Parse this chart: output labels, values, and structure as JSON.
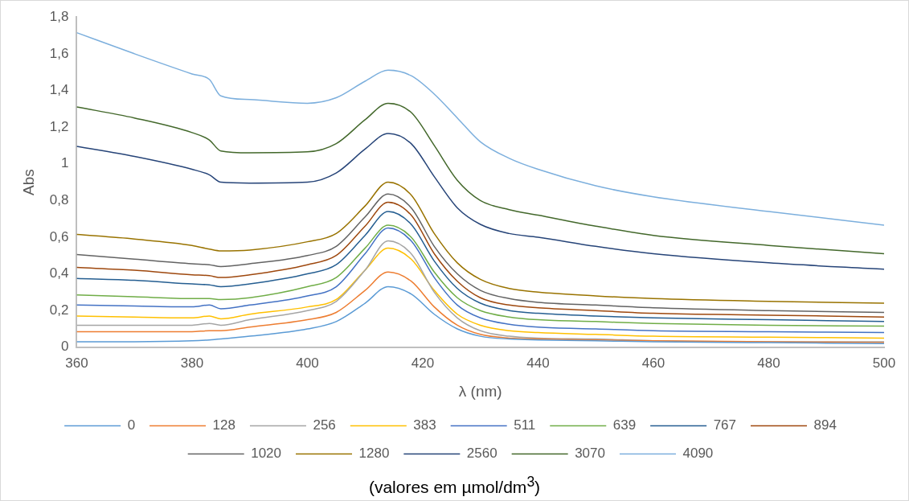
{
  "chart_data": {
    "type": "line",
    "xlabel": "λ (nm)",
    "ylabel": "Abs",
    "annotations": [
      "(valores em µmol/dm$^{3}$)"
    ],
    "x": [
      360,
      370,
      380,
      383,
      385,
      390,
      400,
      405,
      410,
      414,
      418,
      422,
      426,
      430,
      435,
      440,
      450,
      460,
      480,
      500
    ],
    "xlim": [
      360,
      500
    ],
    "xticks": [
      360,
      380,
      400,
      420,
      440,
      460,
      480,
      500
    ],
    "ylim": [
      0,
      1.8
    ],
    "yticks": [
      0,
      {
        "value": 0.2,
        "label": "0,2"
      },
      {
        "value": 0.4,
        "label": "0,4"
      },
      {
        "value": 0.6,
        "label": "0,6"
      },
      {
        "value": 0.8,
        "label": "0,8"
      },
      1,
      {
        "value": 1.2,
        "label": "1,2"
      },
      {
        "value": 1.4,
        "label": "1,4"
      },
      {
        "value": 1.6,
        "label": "1,6"
      },
      {
        "value": 1.8,
        "label": "1,8"
      }
    ],
    "grid": false,
    "legend": "bottom",
    "marker": "none",
    "line_style": "solid",
    "series": [
      {
        "name": "0",
        "color": "#5b9bd5",
        "values": [
          0.03,
          0.03,
          0.035,
          0.04,
          0.045,
          0.06,
          0.1,
          0.14,
          0.24,
          0.33,
          0.29,
          0.18,
          0.1,
          0.06,
          0.045,
          0.04,
          0.035,
          0.03,
          0.025,
          0.02
        ]
      },
      {
        "name": "128",
        "color": "#ed7d31",
        "values": [
          0.085,
          0.085,
          0.085,
          0.09,
          0.09,
          0.11,
          0.15,
          0.19,
          0.31,
          0.41,
          0.36,
          0.22,
          0.12,
          0.07,
          0.05,
          0.045,
          0.04,
          0.035,
          0.03,
          0.025
        ]
      },
      {
        "name": "256",
        "color": "#a5a5a5",
        "values": [
          0.12,
          0.12,
          0.12,
          0.13,
          0.12,
          0.15,
          0.2,
          0.25,
          0.42,
          0.58,
          0.51,
          0.3,
          0.16,
          0.09,
          0.06,
          0.05,
          0.045,
          0.035,
          0.03,
          0.03
        ]
      },
      {
        "name": "383",
        "color": "#ffc000",
        "values": [
          0.17,
          0.165,
          0.16,
          0.17,
          0.155,
          0.18,
          0.22,
          0.26,
          0.42,
          0.54,
          0.48,
          0.31,
          0.18,
          0.12,
          0.09,
          0.08,
          0.07,
          0.06,
          0.055,
          0.05
        ]
      },
      {
        "name": "511",
        "color": "#4472c4",
        "values": [
          0.23,
          0.225,
          0.22,
          0.23,
          0.21,
          0.23,
          0.28,
          0.33,
          0.51,
          0.65,
          0.58,
          0.38,
          0.23,
          0.16,
          0.125,
          0.11,
          0.1,
          0.09,
          0.085,
          0.08
        ]
      },
      {
        "name": "639",
        "color": "#70ad47",
        "values": [
          0.285,
          0.275,
          0.265,
          0.265,
          0.26,
          0.27,
          0.33,
          0.38,
          0.54,
          0.665,
          0.6,
          0.41,
          0.27,
          0.2,
          0.165,
          0.15,
          0.14,
          0.13,
          0.12,
          0.115
        ]
      },
      {
        "name": "767",
        "color": "#255e91",
        "values": [
          0.375,
          0.365,
          0.345,
          0.34,
          0.33,
          0.345,
          0.4,
          0.45,
          0.61,
          0.74,
          0.67,
          0.47,
          0.32,
          0.24,
          0.2,
          0.185,
          0.17,
          0.16,
          0.15,
          0.14
        ]
      },
      {
        "name": "894",
        "color": "#9e480e",
        "values": [
          0.435,
          0.42,
          0.395,
          0.39,
          0.38,
          0.395,
          0.45,
          0.5,
          0.66,
          0.79,
          0.72,
          0.51,
          0.36,
          0.27,
          0.23,
          0.215,
          0.2,
          0.185,
          0.175,
          0.165
        ]
      },
      {
        "name": "1020",
        "color": "#636363",
        "values": [
          0.505,
          0.48,
          0.455,
          0.45,
          0.44,
          0.455,
          0.5,
          0.55,
          0.71,
          0.835,
          0.76,
          0.55,
          0.4,
          0.31,
          0.265,
          0.245,
          0.23,
          0.215,
          0.2,
          0.19
        ]
      },
      {
        "name": "1280",
        "color": "#997300",
        "values": [
          0.615,
          0.59,
          0.555,
          0.535,
          0.525,
          0.53,
          0.575,
          0.62,
          0.77,
          0.9,
          0.83,
          0.62,
          0.46,
          0.37,
          0.32,
          0.3,
          0.28,
          0.265,
          0.25,
          0.24
        ]
      },
      {
        "name": "2560",
        "color": "#264478",
        "values": [
          1.095,
          1.04,
          0.97,
          0.94,
          0.9,
          0.895,
          0.9,
          0.95,
          1.08,
          1.165,
          1.11,
          0.93,
          0.76,
          0.67,
          0.62,
          0.6,
          0.55,
          0.51,
          0.46,
          0.425
        ]
      },
      {
        "name": "3070",
        "color": "#43682b",
        "values": [
          1.31,
          1.25,
          1.17,
          1.13,
          1.07,
          1.06,
          1.065,
          1.11,
          1.24,
          1.33,
          1.28,
          1.1,
          0.91,
          0.8,
          0.75,
          0.72,
          0.66,
          0.61,
          0.555,
          0.51
        ]
      },
      {
        "name": "4090",
        "color": "#7cafdd",
        "values": [
          1.715,
          1.6,
          1.49,
          1.46,
          1.37,
          1.35,
          1.33,
          1.36,
          1.45,
          1.51,
          1.48,
          1.38,
          1.25,
          1.12,
          1.03,
          0.97,
          0.88,
          0.82,
          0.74,
          0.665
        ]
      }
    ]
  }
}
